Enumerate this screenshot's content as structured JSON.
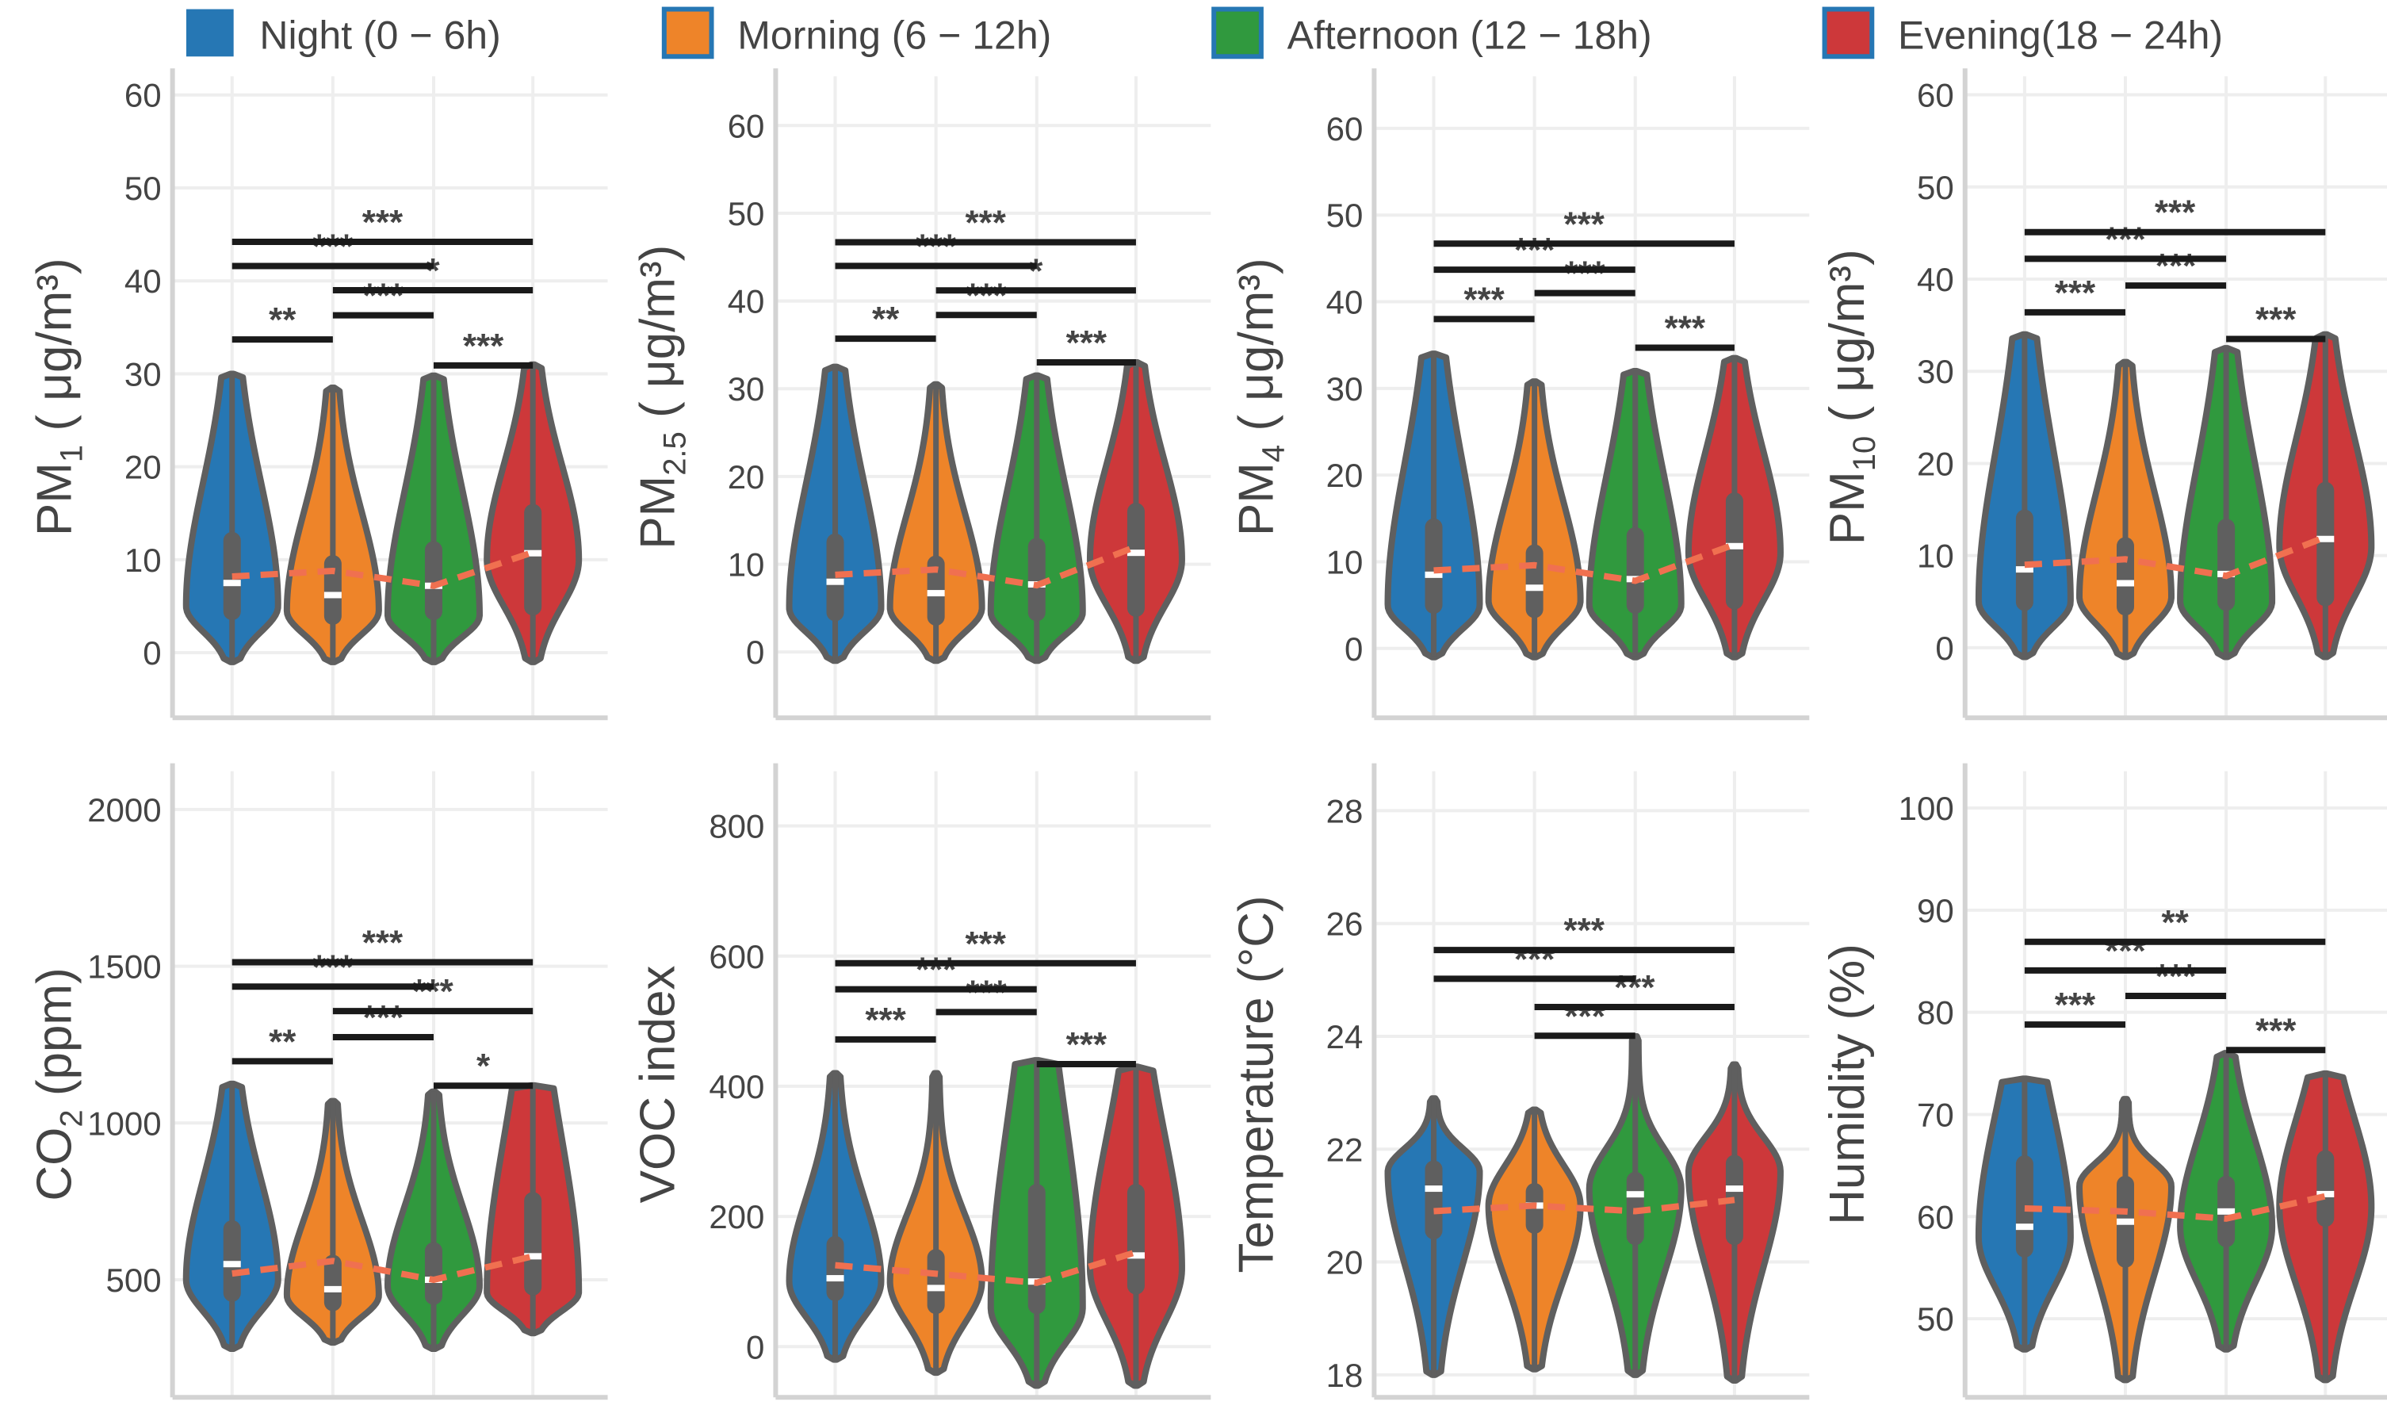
{
  "legend": [
    {
      "label": "Night (0 − 6h)",
      "color": "#2677b4"
    },
    {
      "label": "Morning (6 − 12h)",
      "color": "#ee8429"
    },
    {
      "label": "Afternoon (12 − 18h)",
      "color": "#30993e"
    },
    {
      "label": "Evening(18 − 24h)",
      "color": "#cd383a"
    }
  ],
  "legend_border_color": "#2677b4",
  "outline_color": "#5f5f5f",
  "mean_line_color": "#f07050",
  "chart_data": [
    {
      "type": "violin",
      "ylabel": {
        "main": "PM",
        "sub": "1",
        "rest": " ( μg/m³)"
      },
      "ylim": [
        -7,
        62
      ],
      "ticks": [
        0,
        10,
        20,
        30,
        40,
        50,
        60
      ],
      "groups": [
        {
          "min": -1,
          "max": 30,
          "q1": 3.5,
          "median": 7.5,
          "q3": 13,
          "mean": 8.2,
          "mode": 5
        },
        {
          "min": -1,
          "max": 28.5,
          "q1": 3,
          "median": 6.2,
          "q3": 10.5,
          "mean": 8.8,
          "mode": 4.5
        },
        {
          "min": -1,
          "max": 29.8,
          "q1": 3.5,
          "median": 7.2,
          "q3": 12,
          "mean": 7.2,
          "mode": 4
        },
        {
          "min": -1,
          "max": 31,
          "q1": 4,
          "median": 10.7,
          "q3": 16,
          "mean": 10.8,
          "mode": 10
        }
      ],
      "significance": [
        [
          1,
          2,
          33.7,
          "**"
        ],
        [
          2,
          3,
          36.3,
          "***"
        ],
        [
          3,
          4,
          30.9,
          "***"
        ],
        [
          2,
          4,
          39.0,
          "*"
        ],
        [
          1,
          3,
          41.6,
          "***"
        ],
        [
          1,
          4,
          44.2,
          "***"
        ]
      ]
    },
    {
      "type": "violin",
      "ylabel": {
        "main": "PM",
        "sub": "2.5",
        "rest": " ( μg/m³)"
      },
      "ylim": [
        -7.5,
        65.6
      ],
      "ticks": [
        0,
        10,
        20,
        30,
        40,
        50,
        60
      ],
      "groups": [
        {
          "min": -1,
          "max": 32.5,
          "q1": 3.5,
          "median": 8,
          "q3": 13.5,
          "mean": 8.8,
          "mode": 5
        },
        {
          "min": -1,
          "max": 30.5,
          "q1": 3,
          "median": 6.7,
          "q3": 11,
          "mean": 9.4,
          "mode": 5
        },
        {
          "min": -1,
          "max": 31.5,
          "q1": 3.5,
          "median": 7.7,
          "q3": 13,
          "mean": 7.6,
          "mode": 4.5
        },
        {
          "min": -1,
          "max": 33,
          "q1": 4,
          "median": 11.3,
          "q3": 17,
          "mean": 12,
          "mode": 10.5
        }
      ],
      "significance": [
        [
          1,
          2,
          35.7,
          "**"
        ],
        [
          2,
          3,
          38.4,
          "***"
        ],
        [
          3,
          4,
          33.0,
          "***"
        ],
        [
          2,
          4,
          41.2,
          "*"
        ],
        [
          1,
          3,
          44.0,
          "***"
        ],
        [
          1,
          4,
          46.7,
          "***"
        ]
      ]
    },
    {
      "type": "violin",
      "ylabel": {
        "main": "PM",
        "sub": "4",
        "rest": " ( μg/m³)"
      },
      "ylim": [
        -8,
        66
      ],
      "ticks": [
        0,
        10,
        20,
        30,
        40,
        50,
        60
      ],
      "groups": [
        {
          "min": -1,
          "max": 34,
          "q1": 4,
          "median": 8.5,
          "q3": 15,
          "mean": 9,
          "mode": 5
        },
        {
          "min": -1,
          "max": 30.8,
          "q1": 3.5,
          "median": 7,
          "q3": 12,
          "mean": 9.6,
          "mode": 5.5
        },
        {
          "min": -1,
          "max": 32,
          "q1": 4,
          "median": 8,
          "q3": 14,
          "mean": 7.8,
          "mode": 5
        },
        {
          "min": -1,
          "max": 33.5,
          "q1": 4.5,
          "median": 11.8,
          "q3": 18,
          "mean": 12,
          "mode": 11
        }
      ],
      "significance": [
        [
          1,
          2,
          38.0,
          "***"
        ],
        [
          2,
          3,
          41.0,
          "***"
        ],
        [
          3,
          4,
          34.7,
          "***"
        ],
        [
          1,
          3,
          43.7,
          "***"
        ],
        [
          1,
          4,
          46.7,
          "***"
        ]
      ]
    },
    {
      "type": "violin",
      "ylabel": {
        "main": "PM",
        "sub": "10",
        "rest": " ( μg/m³)"
      },
      "ylim": [
        -7.6,
        62
      ],
      "ticks": [
        0,
        10,
        20,
        30,
        40,
        50,
        60
      ],
      "groups": [
        {
          "min": -1,
          "max": 34,
          "q1": 4,
          "median": 8.5,
          "q3": 15,
          "mean": 9,
          "mode": 5
        },
        {
          "min": -1,
          "max": 31,
          "q1": 3.5,
          "median": 7,
          "q3": 12,
          "mean": 9.6,
          "mode": 5.5
        },
        {
          "min": -1,
          "max": 32.5,
          "q1": 4,
          "median": 8,
          "q3": 14,
          "mean": 7.8,
          "mode": 5
        },
        {
          "min": -1,
          "max": 34,
          "q1": 4.5,
          "median": 11.8,
          "q3": 18,
          "mean": 12,
          "mode": 11
        }
      ],
      "significance": [
        [
          1,
          2,
          36.4,
          "***"
        ],
        [
          2,
          3,
          39.3,
          "***"
        ],
        [
          3,
          4,
          33.5,
          "***"
        ],
        [
          1,
          3,
          42.2,
          "***"
        ],
        [
          1,
          4,
          45.1,
          "***"
        ]
      ]
    },
    {
      "type": "violin",
      "ylabel": {
        "main": "CO",
        "sub": "2",
        "rest": " (ppm)"
      },
      "ylim": [
        125,
        2122
      ],
      "ticks": [
        500,
        1000,
        1500,
        2000
      ],
      "groups": [
        {
          "min": 280,
          "max": 1125,
          "q1": 430,
          "median": 550,
          "q3": 690,
          "mean": 520,
          "mode": 500
        },
        {
          "min": 300,
          "max": 1070,
          "q1": 400,
          "median": 470,
          "q3": 580,
          "mean": 560,
          "mode": 450
        },
        {
          "min": 280,
          "max": 1100,
          "q1": 420,
          "median": 500,
          "q3": 620,
          "mean": 500,
          "mode": 480
        },
        {
          "min": 330,
          "max": 1120,
          "q1": 450,
          "median": 575,
          "q3": 780,
          "mean": 575,
          "mode": 460
        }
      ],
      "significance": [
        [
          1,
          2,
          1197,
          "**"
        ],
        [
          2,
          3,
          1274,
          "***"
        ],
        [
          3,
          4,
          1119,
          "*"
        ],
        [
          2,
          4,
          1357,
          "***"
        ],
        [
          1,
          3,
          1435,
          "***"
        ],
        [
          1,
          4,
          1513,
          "***"
        ]
      ]
    },
    {
      "type": "violin",
      "ylabel": {
        "main": "VOC index",
        "sub": "",
        "rest": ""
      },
      "ylim": [
        -78,
        884
      ],
      "ticks": [
        0,
        200,
        400,
        600,
        800
      ],
      "groups": [
        {
          "min": -20,
          "max": 420,
          "q1": 70,
          "median": 105,
          "q3": 170,
          "mean": 125,
          "mode": 100
        },
        {
          "min": -40,
          "max": 420,
          "q1": 50,
          "median": 90,
          "q3": 150,
          "mean": 112,
          "mode": 100
        },
        {
          "min": -60,
          "max": 440,
          "q1": 50,
          "median": 100,
          "q3": 250,
          "mean": 98,
          "mode": 60
        },
        {
          "min": -60,
          "max": 430,
          "q1": 80,
          "median": 140,
          "q3": 250,
          "mean": 145,
          "mode": 120
        }
      ],
      "significance": [
        [
          1,
          2,
          472,
          "***"
        ],
        [
          2,
          3,
          514,
          "***"
        ],
        [
          3,
          4,
          434,
          "***"
        ],
        [
          1,
          3,
          549,
          "***"
        ],
        [
          1,
          4,
          589,
          "***"
        ]
      ]
    },
    {
      "type": "violin",
      "ylabel": {
        "main": "Temperature (°C)",
        "sub": "",
        "rest": ""
      },
      "ylim": [
        17.6,
        28.7
      ],
      "ticks": [
        18,
        20,
        22,
        24,
        26,
        28
      ],
      "groups": [
        {
          "min": 18,
          "max": 22.9,
          "q1": 20.4,
          "median": 21.3,
          "q3": 21.8,
          "mean": 20.9,
          "mode": 21.6
        },
        {
          "min": 18.1,
          "max": 22.7,
          "q1": 20.5,
          "median": 21.0,
          "q3": 21.4,
          "mean": 21.0,
          "mode": 21.0
        },
        {
          "min": 18.0,
          "max": 24.0,
          "q1": 20.3,
          "median": 21.2,
          "q3": 21.6,
          "mean": 20.9,
          "mode": 21.3
        },
        {
          "min": 17.9,
          "max": 23.5,
          "q1": 20.3,
          "median": 21.3,
          "q3": 21.9,
          "mean": 21.1,
          "mode": 21.6
        }
      ],
      "significance": [
        [
          2,
          3,
          24.01,
          "***"
        ],
        [
          2,
          4,
          24.52,
          "***"
        ],
        [
          1,
          3,
          25.02,
          "***"
        ],
        [
          1,
          4,
          25.53,
          "***"
        ]
      ]
    },
    {
      "type": "violin",
      "ylabel": {
        "main": "Humidity (%)",
        "sub": "",
        "rest": ""
      },
      "ylim": [
        42.3,
        103.6
      ],
      "ticks": [
        50,
        60,
        70,
        80,
        90,
        100
      ],
      "groups": [
        {
          "min": 47,
          "max": 73.5,
          "q1": 56,
          "median": 59,
          "q3": 66,
          "mean": 60.8,
          "mode": 58
        },
        {
          "min": 44,
          "max": 71.5,
          "q1": 55,
          "median": 59.5,
          "q3": 64,
          "mean": 60.5,
          "mode": 63
        },
        {
          "min": 47,
          "max": 76,
          "q1": 57,
          "median": 60.5,
          "q3": 64,
          "mean": 59.8,
          "mode": 59
        },
        {
          "min": 44,
          "max": 74,
          "q1": 59,
          "median": 62.2,
          "q3": 66.5,
          "mean": 62,
          "mode": 61
        }
      ],
      "significance": [
        [
          1,
          2,
          78.8,
          "***"
        ],
        [
          2,
          3,
          81.6,
          "***"
        ],
        [
          3,
          4,
          76.3,
          "***"
        ],
        [
          1,
          3,
          84.1,
          "***"
        ],
        [
          1,
          4,
          86.9,
          "**"
        ]
      ]
    }
  ]
}
